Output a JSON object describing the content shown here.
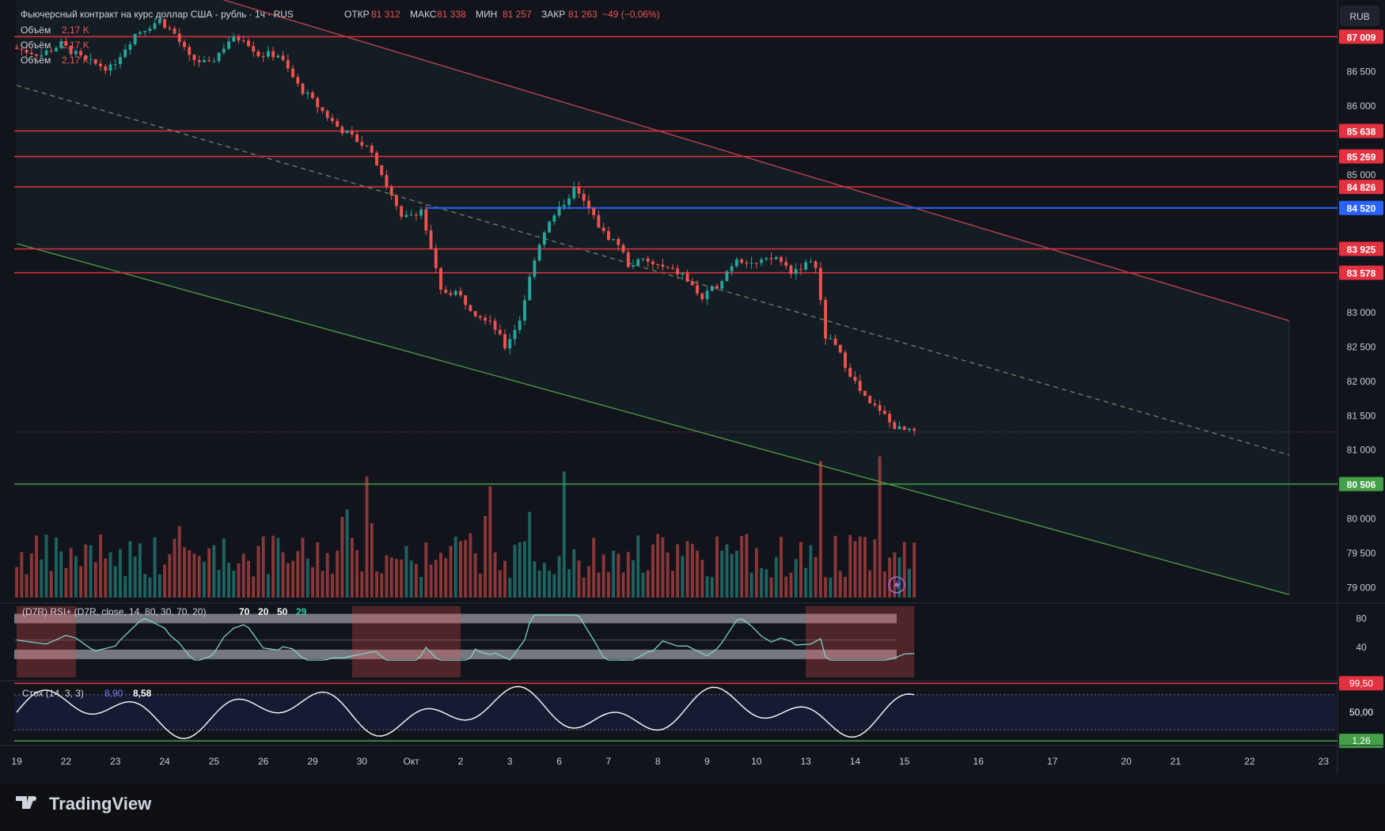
{
  "header": {
    "title": "Фьючерсный контракт на курс доллар США - рубль · 1ч · RUS",
    "o_label": "ОТКР",
    "o_value": "81 312",
    "h_label": "МАКС",
    "h_value": "81 338",
    "l_label": "МИН",
    "l_value": "81 257",
    "c_label": "ЗАКР",
    "c_value": "81 263",
    "change": "−49 (−0,06%)",
    "volume_rows": [
      {
        "label": "Объём",
        "value": "2,17 K"
      },
      {
        "label": "Объём",
        "value": "2,17 K"
      },
      {
        "label": "Объём",
        "value": "2,17 K"
      }
    ]
  },
  "currency_button": "RUB",
  "brand": "TradingView",
  "colors": {
    "bg": "#12141c",
    "bull": "#26a69a",
    "bear": "#ef5350",
    "level_red": "#e3313f",
    "level_blue": "#2962ff",
    "level_green": "#43a047",
    "rsi_line": "#7fdcd3",
    "stoch_line": "#ffffff"
  },
  "chart_data": {
    "type": "candlestick",
    "y_range": [
      78800,
      87450
    ],
    "y_ticks": [
      "86 500",
      "86 000",
      "85 000",
      "83 000",
      "82 500",
      "82 000",
      "81 500",
      "81 000",
      "80 000",
      "79 500",
      "79 000"
    ],
    "y_tick_values": [
      86500,
      86000,
      85000,
      83000,
      82500,
      82000,
      81500,
      81000,
      80000,
      79500,
      79000
    ],
    "x_ticks": [
      "19",
      "22",
      "23",
      "24",
      "25",
      "26",
      "29",
      "30",
      "Окт",
      "2",
      "3",
      "6",
      "7",
      "8",
      "9",
      "10",
      "13",
      "14",
      "15",
      "16",
      "17",
      "20",
      "21",
      "22",
      "23"
    ],
    "x_tick_index": [
      0,
      10,
      20,
      30,
      40,
      50,
      60,
      70,
      80,
      90,
      100,
      110,
      120,
      130,
      140,
      150,
      160,
      170,
      180,
      195,
      210,
      225,
      235,
      250,
      265
    ],
    "levels": [
      {
        "value": 87009,
        "label": "87 009",
        "color": "red"
      },
      {
        "value": 85638,
        "label": "85 638",
        "color": "red"
      },
      {
        "value": 85269,
        "label": "85 269",
        "color": "red"
      },
      {
        "value": 84826,
        "label": "84 826",
        "color": "red"
      },
      {
        "value": 84520,
        "label": "84 520",
        "color": "blue"
      },
      {
        "value": 83925,
        "label": "83 925",
        "color": "red"
      },
      {
        "value": 83578,
        "label": "83 578",
        "color": "red"
      },
      {
        "value": 80506,
        "label": "80 506",
        "color": "green"
      }
    ],
    "current_price": 81263,
    "channel": {
      "upper": [
        [
          0,
          88450
        ],
        [
          258,
          82880
        ]
      ],
      "mid": [
        [
          0,
          86300
        ],
        [
          258,
          80930
        ]
      ],
      "lower": [
        [
          0,
          84000
        ],
        [
          258,
          78900
        ]
      ]
    },
    "price_path": [
      [
        0,
        86850
      ],
      [
        6,
        86750
      ],
      [
        10,
        86900
      ],
      [
        15,
        86650
      ],
      [
        20,
        86550
      ],
      [
        25,
        87050
      ],
      [
        30,
        87250
      ],
      [
        33,
        87050
      ],
      [
        36,
        86700
      ],
      [
        40,
        86600
      ],
      [
        44,
        86950
      ],
      [
        47,
        87000
      ],
      [
        50,
        86750
      ],
      [
        54,
        86750
      ],
      [
        58,
        86300
      ],
      [
        62,
        86000
      ],
      [
        66,
        85700
      ],
      [
        70,
        85500
      ],
      [
        73,
        85350
      ],
      [
        76,
        84850
      ],
      [
        79,
        84350
      ],
      [
        83,
        84500
      ],
      [
        85,
        83900
      ],
      [
        87,
        83300
      ],
      [
        90,
        83300
      ],
      [
        94,
        83000
      ],
      [
        97,
        82900
      ],
      [
        100,
        82500
      ],
      [
        103,
        82900
      ],
      [
        106,
        83800
      ],
      [
        108,
        84200
      ],
      [
        111,
        84500
      ],
      [
        114,
        84800
      ],
      [
        117,
        84500
      ],
      [
        120,
        84150
      ],
      [
        123,
        84000
      ],
      [
        125,
        83700
      ],
      [
        128,
        83750
      ],
      [
        132,
        83650
      ],
      [
        136,
        83550
      ],
      [
        140,
        83200
      ],
      [
        143,
        83400
      ],
      [
        147,
        83800
      ],
      [
        151,
        83700
      ],
      [
        155,
        83800
      ],
      [
        158,
        83600
      ],
      [
        161,
        83700
      ],
      [
        163,
        83700
      ],
      [
        165,
        82650
      ],
      [
        167,
        82500
      ],
      [
        169,
        82250
      ],
      [
        172,
        81850
      ],
      [
        174,
        81650
      ],
      [
        176,
        81600
      ],
      [
        178,
        81400
      ],
      [
        180,
        81300
      ],
      [
        182,
        81263
      ]
    ],
    "volume_scale_max": 1.0,
    "rsi": {
      "label": "(D7R) RSI+ (D7R, close, 14, 80, 30, 70, 20)",
      "values_label": [
        "70",
        "20",
        "50",
        "29"
      ],
      "axis": [
        "80",
        "40"
      ],
      "axis_values": [
        80,
        40
      ],
      "last": 29
    },
    "stoch": {
      "label": "Стох (14, 3, 3)",
      "k": "8,90",
      "d": "8,58",
      "axis": [
        "99,50",
        "50,00",
        "1,26"
      ],
      "axis_values": [
        99.5,
        50,
        1.26
      ]
    }
  }
}
